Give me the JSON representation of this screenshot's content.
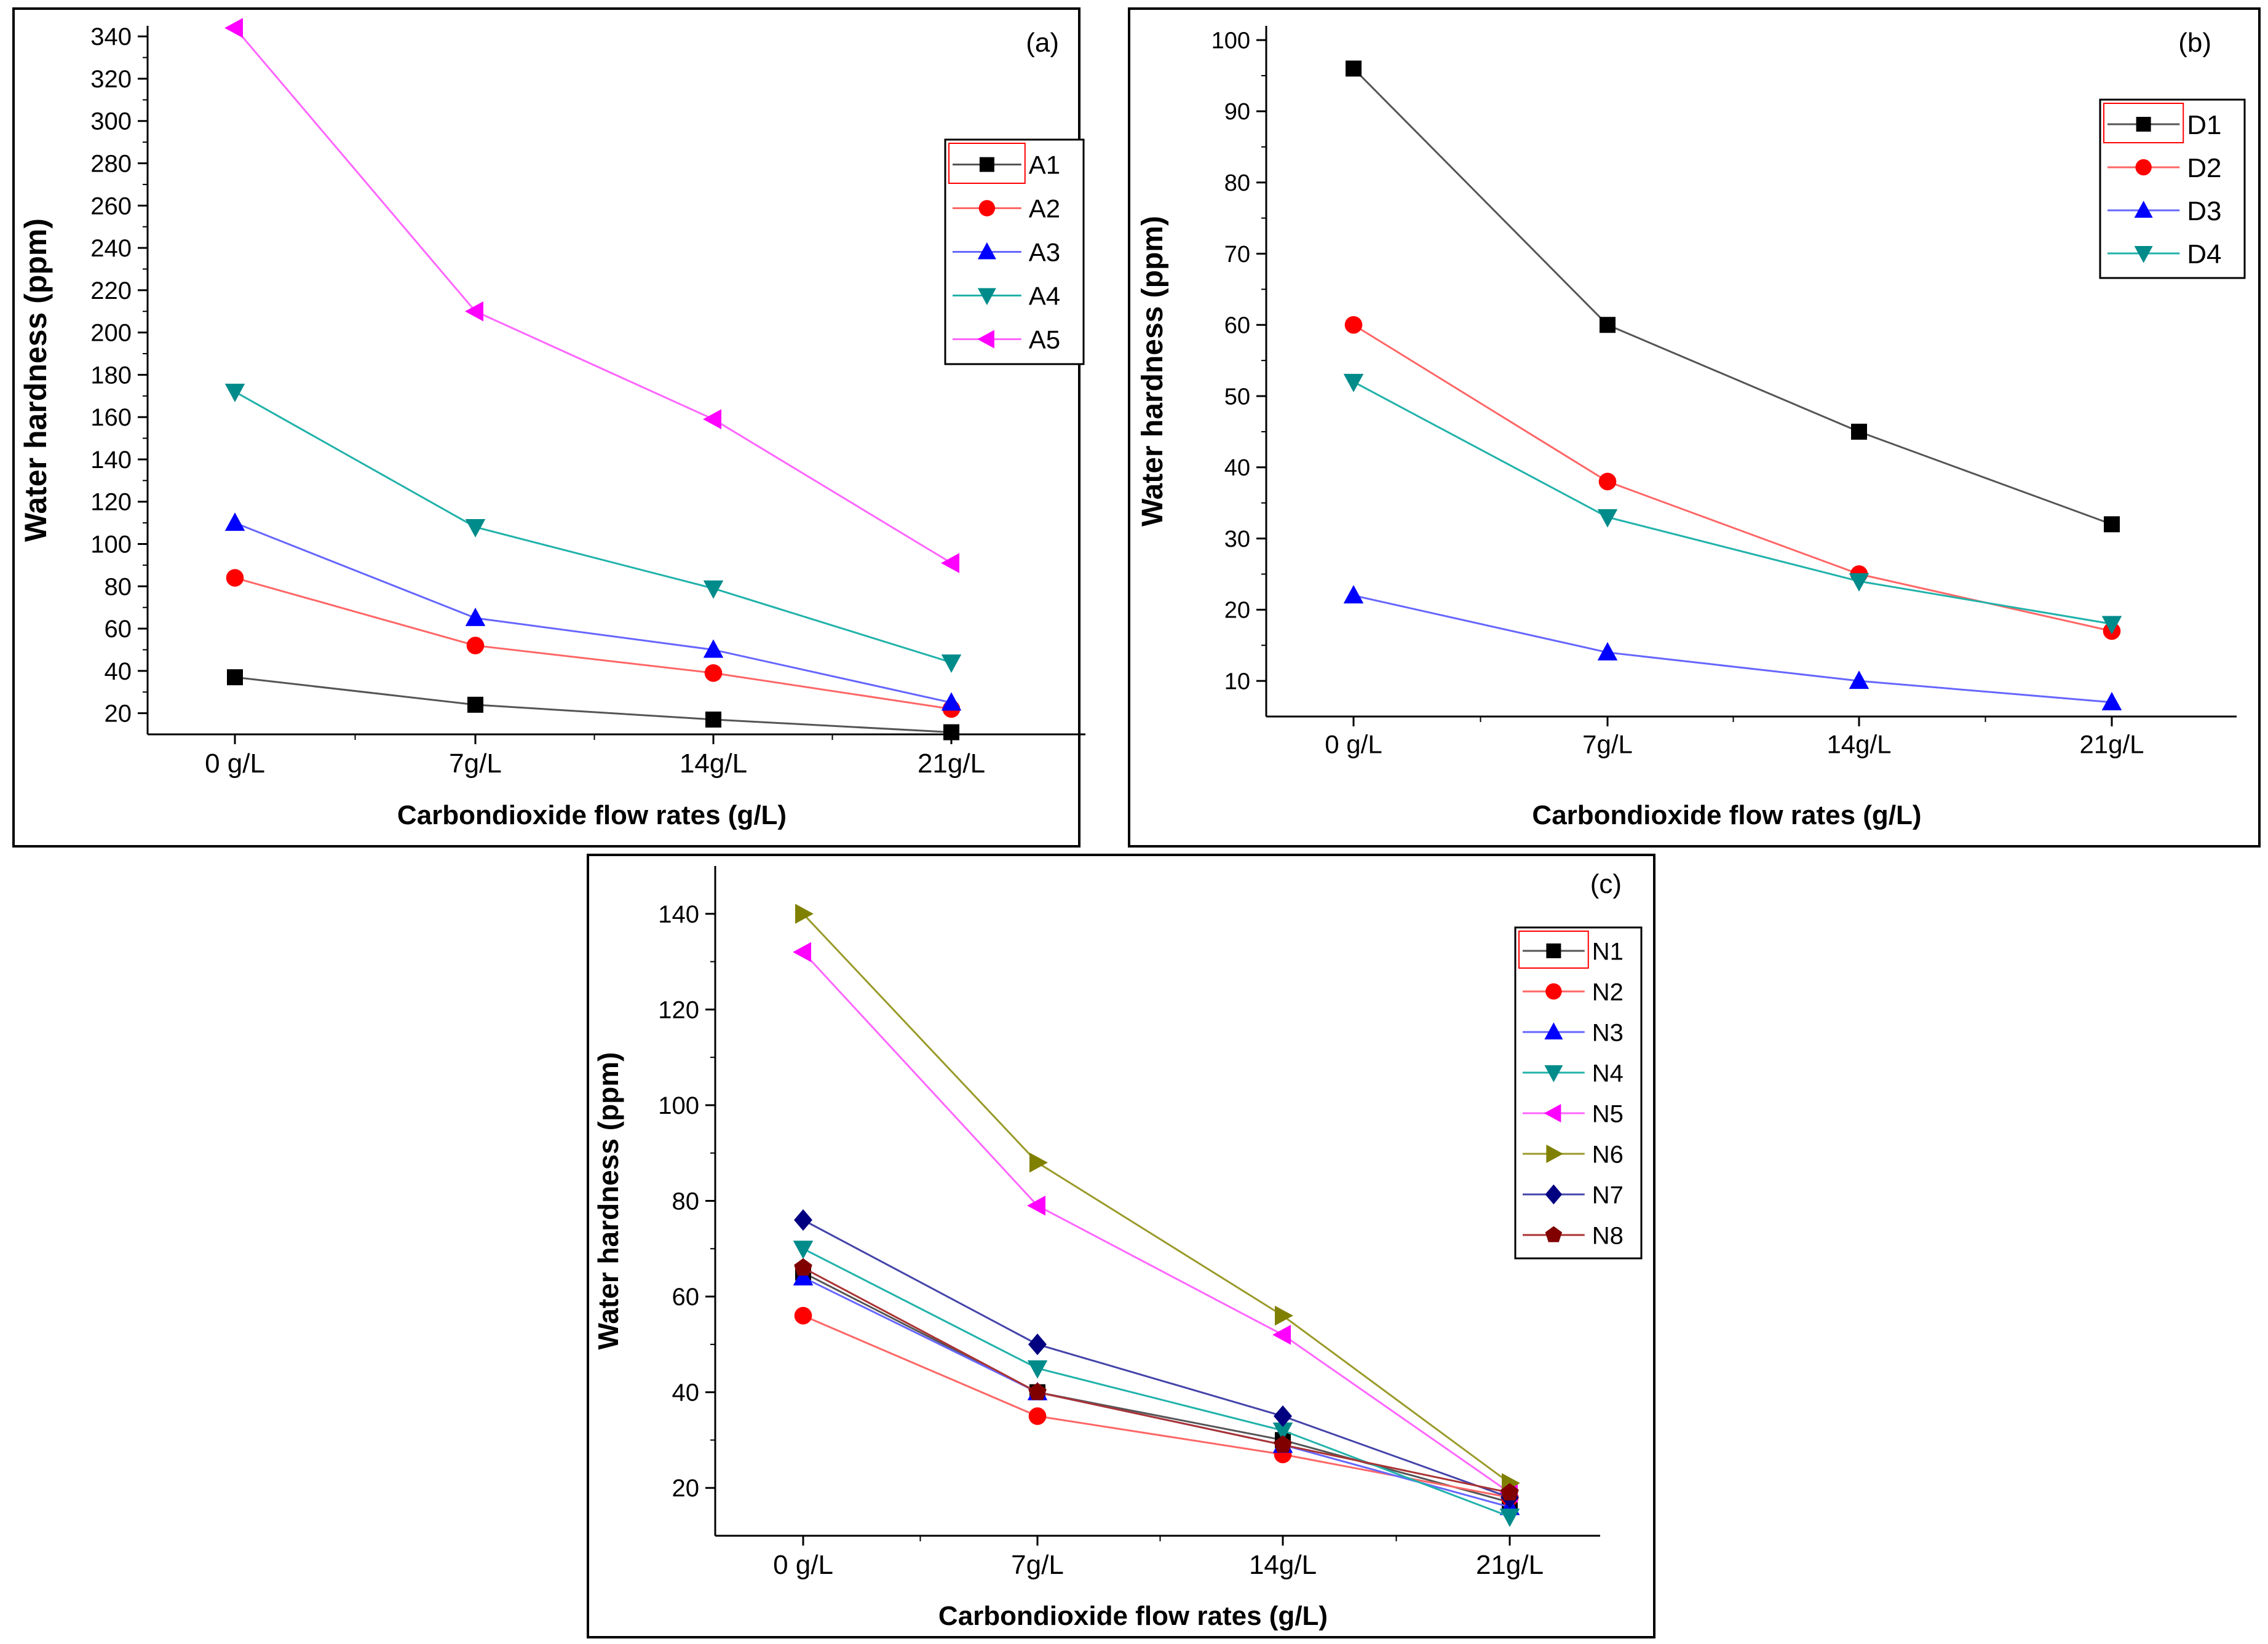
{
  "chart_data": [
    {
      "id": "a",
      "type": "line",
      "panel_label": "(a)",
      "title": "",
      "xlabel": "Carbondioxide flow rates (g/L)",
      "ylabel": "Water hardness (ppm)",
      "categories": [
        "0 g/L",
        "7g/L",
        "14g/L",
        "21g/L"
      ],
      "ylim": [
        10,
        345
      ],
      "yticks": [
        20,
        40,
        60,
        80,
        100,
        120,
        140,
        160,
        180,
        200,
        220,
        240,
        260,
        280,
        300,
        320,
        340
      ],
      "legend_position": "upper-right",
      "series": [
        {
          "name": "A1",
          "marker": "square",
          "color": "#000000",
          "line_color": "#555555",
          "values": [
            37,
            24,
            17,
            11
          ]
        },
        {
          "name": "A2",
          "marker": "circle",
          "color": "#ff0000",
          "line_color": "#ff6666",
          "values": [
            84,
            52,
            39,
            22
          ]
        },
        {
          "name": "A3",
          "marker": "triangle-up",
          "color": "#0000ff",
          "line_color": "#6666ff",
          "values": [
            110,
            65,
            50,
            25
          ]
        },
        {
          "name": "A4",
          "marker": "triangle-down",
          "color": "#008b8b",
          "line_color": "#20b2aa",
          "values": [
            172,
            108,
            79,
            44
          ]
        },
        {
          "name": "A5",
          "marker": "triangle-left",
          "color": "#ff00ff",
          "line_color": "#ff66ff",
          "values": [
            344,
            210,
            159,
            91
          ]
        }
      ]
    },
    {
      "id": "b",
      "type": "line",
      "panel_label": "(b)",
      "title": "",
      "xlabel": "Carbondioxide flow rates (g/L)",
      "ylabel": "Water hardness (ppm)",
      "categories": [
        "0 g/L",
        "7g/L",
        "14g/L",
        "21g/L"
      ],
      "ylim": [
        5,
        102
      ],
      "yticks": [
        10,
        20,
        30,
        40,
        50,
        60,
        70,
        80,
        90,
        100
      ],
      "legend_position": "upper-right",
      "series": [
        {
          "name": "D1",
          "marker": "square",
          "color": "#000000",
          "line_color": "#555555",
          "values": [
            96,
            60,
            45,
            32
          ]
        },
        {
          "name": "D2",
          "marker": "circle",
          "color": "#ff0000",
          "line_color": "#ff6666",
          "values": [
            60,
            38,
            25,
            17
          ]
        },
        {
          "name": "D3",
          "marker": "triangle-up",
          "color": "#0000ff",
          "line_color": "#6666ff",
          "values": [
            22,
            14,
            10,
            7
          ]
        },
        {
          "name": "D4",
          "marker": "triangle-down",
          "color": "#008b8b",
          "line_color": "#20b2aa",
          "values": [
            52,
            33,
            24,
            18
          ]
        }
      ]
    },
    {
      "id": "c",
      "type": "line",
      "panel_label": "(c)",
      "title": "",
      "xlabel": "Carbondioxide flow rates (g/L)",
      "ylabel": "Water hardness (ppm)",
      "categories": [
        "0 g/L",
        "7g/L",
        "14g/L",
        "21g/L"
      ],
      "ylim": [
        10,
        150
      ],
      "yticks": [
        20,
        40,
        60,
        80,
        100,
        120,
        140
      ],
      "legend_position": "upper-right",
      "series": [
        {
          "name": "N1",
          "marker": "square",
          "color": "#000000",
          "line_color": "#555555",
          "values": [
            65,
            40,
            30,
            17
          ]
        },
        {
          "name": "N2",
          "marker": "circle",
          "color": "#ff0000",
          "line_color": "#ff6666",
          "values": [
            56,
            35,
            27,
            18
          ]
        },
        {
          "name": "N3",
          "marker": "triangle-up",
          "color": "#0000ff",
          "line_color": "#6666ff",
          "values": [
            64,
            40,
            29,
            16
          ]
        },
        {
          "name": "N4",
          "marker": "triangle-down",
          "color": "#008b8b",
          "line_color": "#20b2aa",
          "values": [
            70,
            45,
            32,
            14
          ]
        },
        {
          "name": "N5",
          "marker": "triangle-left",
          "color": "#ff00ff",
          "line_color": "#ff66ff",
          "values": [
            132,
            79,
            52,
            19
          ]
        },
        {
          "name": "N6",
          "marker": "triangle-right",
          "color": "#808000",
          "line_color": "#9a9a2a",
          "values": [
            140,
            88,
            56,
            21
          ]
        },
        {
          "name": "N7",
          "marker": "diamond",
          "color": "#000080",
          "line_color": "#4444aa",
          "values": [
            76,
            50,
            35,
            18
          ]
        },
        {
          "name": "N8",
          "marker": "pentagon",
          "color": "#800000",
          "line_color": "#aa3333",
          "values": [
            66,
            40,
            29,
            19
          ]
        }
      ]
    }
  ]
}
